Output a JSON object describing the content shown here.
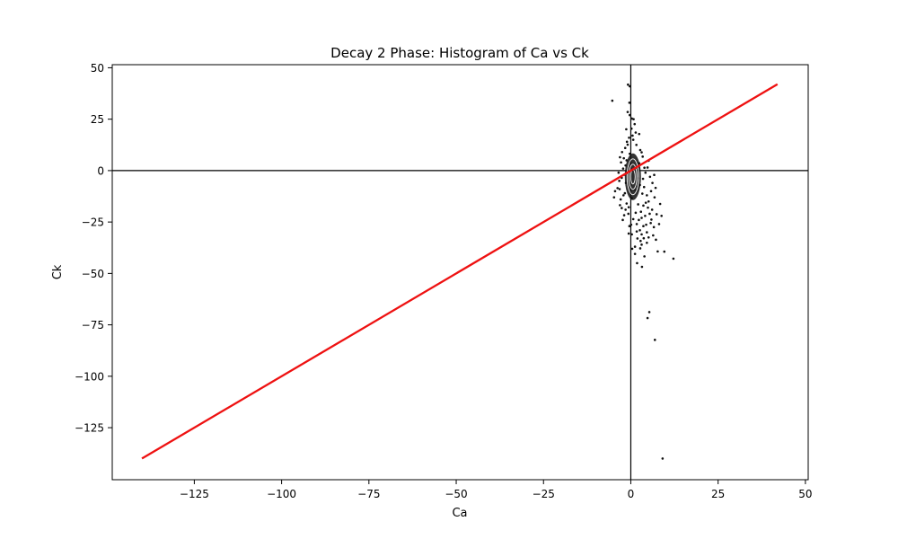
{
  "chart_data": {
    "type": "scatter",
    "title": "Decay 2 Phase: Histogram of Ca vs Ck",
    "xlabel": "Ca",
    "ylabel": "Ck",
    "xlim": [
      -148.5,
      50.8
    ],
    "ylim": [
      -150.3,
      51.5
    ],
    "grid": false,
    "x_ticks": [
      -125,
      -100,
      -75,
      -50,
      -25,
      0,
      25,
      50
    ],
    "x_tick_labels": [
      "−125",
      "−100",
      "−75",
      "−50",
      "−25",
      "0",
      "25",
      "50"
    ],
    "y_ticks": [
      50,
      25,
      0,
      -25,
      -50,
      -75,
      -100,
      -125
    ],
    "y_tick_labels": [
      "50",
      "25",
      "0",
      "−25",
      "−50",
      "−75",
      "−100",
      "−125"
    ],
    "reference_lines": [
      {
        "kind": "horizontal",
        "y": 0,
        "color": "#000000"
      },
      {
        "kind": "vertical",
        "x": 0,
        "color": "#000000"
      }
    ],
    "diagonal_line": {
      "x": [
        -140,
        42
      ],
      "y": [
        -140,
        42
      ],
      "color": "#ee1111"
    },
    "point_color": "#111111",
    "points": [
      [
        -5.3,
        34
      ],
      [
        -0.8,
        41.8
      ],
      [
        -0.3,
        41
      ],
      [
        -0.4,
        33
      ],
      [
        -0.9,
        28.5
      ],
      [
        -0.3,
        27
      ],
      [
        0.3,
        25.3
      ],
      [
        0.8,
        25
      ],
      [
        1.4,
        18.5
      ],
      [
        0.5,
        17
      ],
      [
        -0.5,
        16
      ],
      [
        -1.1,
        14
      ],
      [
        0.7,
        15
      ],
      [
        -1.6,
        11
      ],
      [
        -2.5,
        9
      ],
      [
        -3.1,
        6.5
      ],
      [
        -2,
        6
      ],
      [
        -1.2,
        5
      ],
      [
        -2.8,
        4
      ],
      [
        -1.5,
        2.5
      ],
      [
        -2.2,
        1
      ],
      [
        -3.5,
        -1
      ],
      [
        -1.8,
        -2
      ],
      [
        -2.6,
        -3.5
      ],
      [
        -3.3,
        -5
      ],
      [
        -1.4,
        -6
      ],
      [
        -4.5,
        -10
      ],
      [
        -3.2,
        -9
      ],
      [
        -2.1,
        -12
      ],
      [
        -4.8,
        -13
      ],
      [
        -1.7,
        -11
      ],
      [
        -2.9,
        -14
      ],
      [
        -3.8,
        -8.5
      ],
      [
        -1.2,
        -16
      ],
      [
        -1.5,
        -19
      ],
      [
        -0.7,
        -21
      ],
      [
        -2.3,
        -24
      ],
      [
        -0.4,
        -27
      ],
      [
        0.3,
        -31
      ],
      [
        0.4,
        -38
      ],
      [
        1.2,
        -37
      ],
      [
        2.6,
        -7
      ],
      [
        3.5,
        -4
      ],
      [
        4.2,
        -1
      ],
      [
        4.8,
        1.5
      ],
      [
        5.5,
        -3
      ],
      [
        6.2,
        -6
      ],
      [
        3.8,
        -8
      ],
      [
        5.8,
        -10
      ],
      [
        4.6,
        -12
      ],
      [
        6.8,
        -13
      ],
      [
        5.1,
        -15
      ],
      [
        3.6,
        -17
      ],
      [
        4.9,
        -18
      ],
      [
        6.1,
        -19
      ],
      [
        2.9,
        -20
      ],
      [
        5.4,
        -21
      ],
      [
        4.1,
        -22
      ],
      [
        3.1,
        -23
      ],
      [
        2.3,
        -24
      ],
      [
        5.7,
        -25.5
      ],
      [
        1.7,
        -26
      ],
      [
        3.6,
        -27
      ],
      [
        6.6,
        -27.5
      ],
      [
        2.6,
        -29
      ],
      [
        4.6,
        -30
      ],
      [
        3.1,
        -31
      ],
      [
        5.1,
        -32.5
      ],
      [
        1.9,
        -33
      ],
      [
        6.4,
        -31.5
      ],
      [
        3.1,
        -36
      ],
      [
        8.8,
        -22
      ],
      [
        8.1,
        -26
      ],
      [
        7.7,
        -39.3
      ],
      [
        9.6,
        -39.4
      ],
      [
        12.2,
        -42.8
      ],
      [
        1.8,
        -45
      ],
      [
        3.2,
        -46.8
      ],
      [
        5.3,
        -68.8
      ],
      [
        4.8,
        -71.7
      ],
      [
        6.9,
        -82.3
      ],
      [
        9.1,
        -140
      ],
      [
        2.4,
        17.8
      ],
      [
        1.6,
        12.5
      ],
      [
        2.7,
        10
      ],
      [
        3.4,
        6.8
      ],
      [
        2.4,
        3.6
      ],
      [
        3.9,
        1.4
      ],
      [
        2.2,
        -3.7
      ],
      [
        1.3,
        -9.5
      ],
      [
        0.3,
        -13.4
      ],
      [
        -0.6,
        -17.8
      ],
      [
        1.4,
        -20.5
      ],
      [
        0.7,
        -23.6
      ],
      [
        2.1,
        -16.4
      ],
      [
        3.3,
        -11.2
      ],
      [
        4.3,
        -15.6
      ],
      [
        1.9,
        -7.8
      ],
      [
        -0.3,
        8.2
      ],
      [
        -0.9,
        12.6
      ],
      [
        0.2,
        20.4
      ],
      [
        -1.3,
        20.1
      ],
      [
        1.1,
        22.6
      ],
      [
        -2.6,
        -18.2
      ],
      [
        -1.9,
        -21.7
      ],
      [
        -3.1,
        -16.8
      ],
      [
        2.8,
        -34.2
      ],
      [
        4.6,
        -35.1
      ],
      [
        1.2,
        -40.5
      ],
      [
        3.9,
        -41.7
      ],
      [
        7.2,
        -33.6
      ],
      [
        8.4,
        -16.2
      ],
      [
        7.1,
        -8.4
      ],
      [
        6.7,
        -2.1
      ],
      [
        5.1,
        4.8
      ],
      [
        3.1,
        8.9
      ],
      [
        4.4,
        -26.3
      ],
      [
        2.7,
        -37.8
      ],
      [
        0.1,
        -26.3
      ],
      [
        -0.6,
        -30.6
      ],
      [
        5.9,
        -23.8
      ],
      [
        7.4,
        -21.2
      ],
      [
        3.7,
        -32.9
      ],
      [
        1.7,
        -29.6
      ]
    ]
  }
}
